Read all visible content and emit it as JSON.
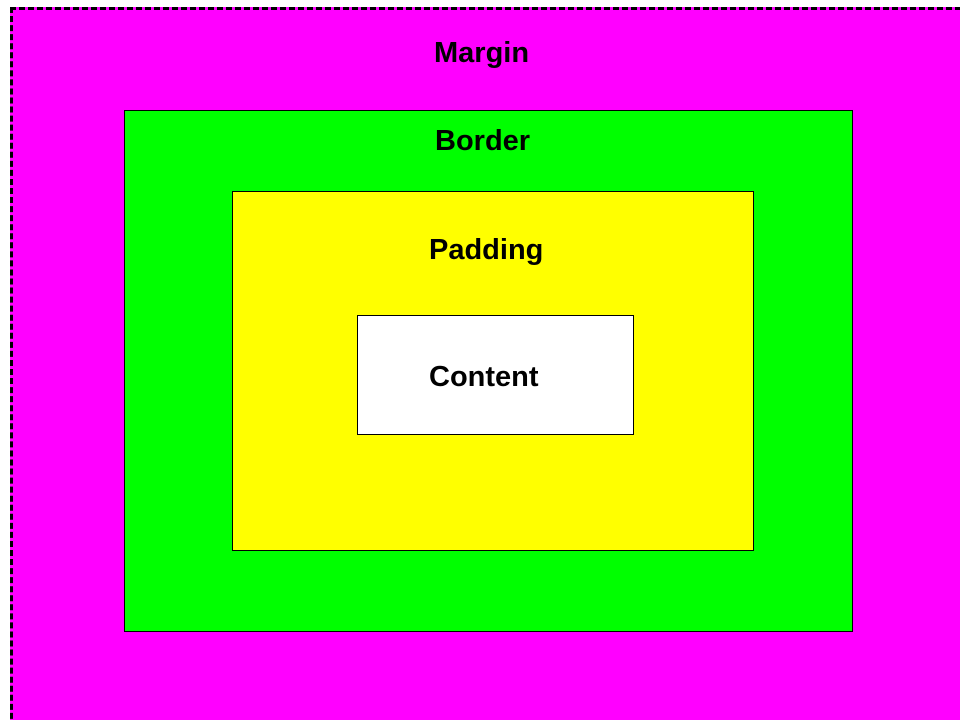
{
  "diagram": {
    "margin": {
      "label": "Margin",
      "color": "#ff00ff"
    },
    "border": {
      "label": "Border",
      "color": "#00ff00"
    },
    "padding": {
      "label": "Padding",
      "color": "#ffff00"
    },
    "content": {
      "label": "Content",
      "color": "#ffffff"
    }
  }
}
